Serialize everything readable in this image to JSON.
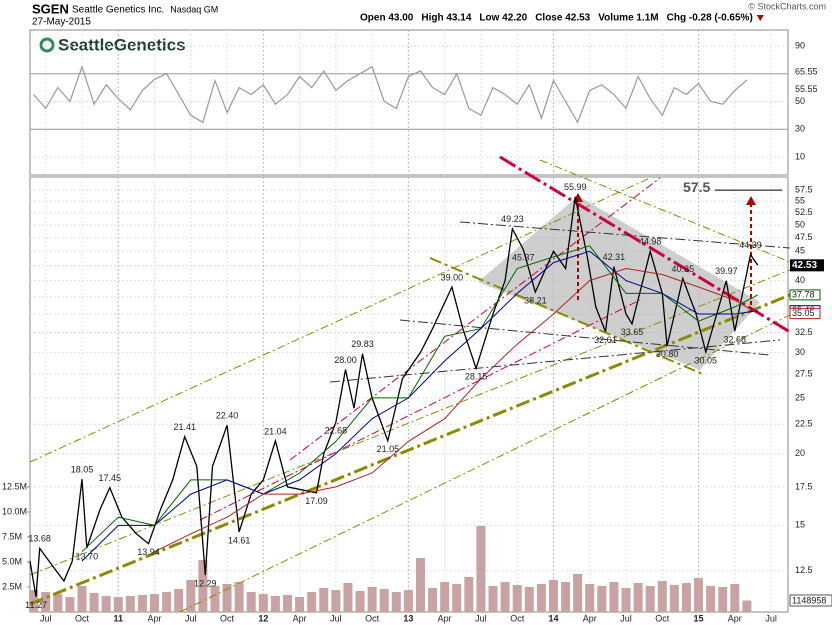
{
  "header": {
    "symbol": "SGEN",
    "name": "Seattle Genetics Inc.",
    "exchange": "Nasdaq GM",
    "date": "27-May-2015",
    "quote": [
      "Open 43.00",
      "High 43.14",
      "Low 42.20",
      "Close 42.53",
      "Volume 1.1M",
      "Chg -0.28 (-0.65%)"
    ],
    "copyright": "© StockCharts.com",
    "logo": "SeattleGenetics"
  },
  "chart_data": [
    {
      "type": "line",
      "xlim": [
        -7.3,
        55.4
      ],
      "ylim": [
        -3,
        101.5
      ],
      "yticks": [
        10,
        30,
        50,
        90
      ],
      "bands": [
        30,
        70
      ],
      "grid": true,
      "tags": [
        65.55,
        55.55
      ],
      "series": [
        {
          "color": "#999999",
          "x": [
            -7,
            -6,
            -5,
            -4,
            -3,
            -2,
            -1,
            0,
            1,
            2,
            3,
            4,
            5,
            6,
            7,
            8,
            9,
            10,
            11,
            12,
            13,
            14,
            15,
            16,
            17,
            18,
            19,
            20,
            21,
            22,
            23,
            24,
            25,
            26,
            27,
            28,
            29,
            30,
            31,
            32,
            33,
            34,
            35,
            36,
            37,
            38,
            39,
            40,
            41,
            42,
            43,
            44,
            45,
            46,
            47,
            48,
            49,
            50,
            51,
            52
          ],
          "values": [
            55,
            45,
            60,
            50,
            75,
            48,
            62,
            52,
            44,
            58,
            66,
            70,
            55,
            40,
            35,
            65,
            42,
            60,
            55,
            62,
            48,
            55,
            68,
            60,
            72,
            58,
            65,
            70,
            75,
            50,
            45,
            68,
            72,
            60,
            55,
            70,
            45,
            40,
            60,
            55,
            48,
            62,
            38,
            65,
            50,
            35,
            58,
            62,
            55,
            45,
            68,
            52,
            40,
            60,
            55,
            63,
            50,
            48,
            58,
            65.55
          ]
        }
      ]
    },
    {
      "type": "line",
      "log_scale": true,
      "grid": true,
      "xlim": [
        -7.3,
        55.4
      ],
      "ylim": [
        10.6,
        60.6
      ],
      "yticks": [
        12.5,
        15,
        17.5,
        20,
        22.5,
        25,
        27.5,
        30,
        32.5,
        35,
        37.5,
        40,
        42.5,
        45,
        47.5,
        50,
        52.5,
        55,
        57.5
      ],
      "y2lim": [
        0,
        43.5
      ],
      "y2ticks": [
        {
          "value": 2.5,
          "label": "2.5M"
        },
        {
          "value": 5,
          "label": "5.0M"
        },
        {
          "value": 7.5,
          "label": "7.5M"
        },
        {
          "value": 10,
          "label": "10.0M"
        },
        {
          "value": 12.5,
          "label": "12.5M"
        }
      ],
      "xticks": [
        {
          "value": -6,
          "label": "Jul"
        },
        {
          "value": -3,
          "label": "Oct"
        },
        {
          "value": 0,
          "label": "11"
        },
        {
          "value": 3,
          "label": "Apr"
        },
        {
          "value": 6,
          "label": "Jul"
        },
        {
          "value": 9,
          "label": "Oct"
        },
        {
          "value": 12,
          "label": "12"
        },
        {
          "value": 15,
          "label": "Apr"
        },
        {
          "value": 18,
          "label": "Jul"
        },
        {
          "value": 21,
          "label": "Oct"
        },
        {
          "value": 24,
          "label": "13"
        },
        {
          "value": 27,
          "label": "Apr"
        },
        {
          "value": 30,
          "label": "Jul"
        },
        {
          "value": 33,
          "label": "Oct"
        },
        {
          "value": 36,
          "label": "14"
        },
        {
          "value": 39,
          "label": "Apr"
        },
        {
          "value": 42,
          "label": "Jul"
        },
        {
          "value": 45,
          "label": "Oct"
        },
        {
          "value": 48,
          "label": "15"
        },
        {
          "value": 51,
          "label": "Apr"
        },
        {
          "value": 54,
          "label": "Jul"
        }
      ],
      "target": 57.5,
      "series": [
        {
          "color": "#000000",
          "x": [
            -7.3,
            -6.8,
            -6.5,
            -5.5,
            -4.5,
            -3.8,
            -3.0,
            -2.6,
            -1.5,
            -0.7,
            0.3,
            1.5,
            2.5,
            3.5,
            4.5,
            5.5,
            6.5,
            7.2,
            7.8,
            9.0,
            10.0,
            11.0,
            12.0,
            13.0,
            14.0,
            16.4,
            17.0,
            18.0,
            18.8,
            19.5,
            20.2,
            21.0,
            22.3,
            23.5,
            25.0,
            26.0,
            27.6,
            28.5,
            29.6,
            31.0,
            32.0,
            32.6,
            33.5,
            34.5,
            36.0,
            37.0,
            37.8,
            38.8,
            39.5,
            40.3,
            41.0,
            42.0,
            42.5,
            44.0,
            45.0,
            45.4,
            46.7,
            47.8,
            48.6,
            50.3,
            51.0,
            52.3,
            52.9
          ],
          "values": [
            13.0,
            11.27,
            13.68,
            12.8,
            12.0,
            13.0,
            18.05,
            13.7,
            16.0,
            17.45,
            15.5,
            14.5,
            13.94,
            16.0,
            18.0,
            21.41,
            19.0,
            12.29,
            19.0,
            22.4,
            14.61,
            17.0,
            18.0,
            21.04,
            17.5,
            17.09,
            20.0,
            22.68,
            28.0,
            24.0,
            29.83,
            25.0,
            21.05,
            27.0,
            30.0,
            33.0,
            39.0,
            33.0,
            28.15,
            35.0,
            40.0,
            49.23,
            45.37,
            38.21,
            45.0,
            42.0,
            55.99,
            44.0,
            36.0,
            32.61,
            42.31,
            35.0,
            33.65,
            44.98,
            38.0,
            30.8,
            40.35,
            35.0,
            30.05,
            39.97,
            32.68,
            44.39,
            42.53
          ],
          "value_labels": [
            null,
            "11.27",
            "13.68",
            null,
            null,
            null,
            "18.05",
            "13.70",
            null,
            "17.45",
            null,
            null,
            "13.94",
            null,
            null,
            "21.41",
            null,
            "12.29",
            null,
            "22.40",
            "14.61",
            null,
            null,
            "21.04",
            null,
            "17.09",
            null,
            "22.68",
            "28.00",
            null,
            "29.83",
            null,
            "21.05",
            null,
            null,
            null,
            "39.00",
            null,
            "28.15",
            null,
            null,
            "49.23",
            "45.37",
            "38.21",
            null,
            null,
            "55.99",
            null,
            null,
            "32.61",
            "42.31",
            null,
            "33.65",
            "44.98",
            null,
            "30.80",
            "40.35",
            null,
            "30.05",
            "39.97",
            "32.68",
            "44.39",
            "42.53"
          ]
        },
        {
          "color": "#006400",
          "x": [
            -3,
            0,
            3,
            6,
            9,
            12,
            15,
            18,
            21,
            24,
            27,
            30,
            33,
            36,
            39,
            42,
            45,
            48,
            51,
            52.9
          ],
          "values": [
            13.5,
            15.5,
            15,
            18,
            18,
            17,
            18.5,
            21,
            25,
            25,
            32,
            33,
            42,
            44,
            46,
            38,
            38,
            34,
            36,
            37.78
          ]
        },
        {
          "color": "#00008b",
          "x": [
            -3,
            0,
            3,
            6,
            9,
            12,
            15,
            18,
            21,
            24,
            27,
            30,
            33,
            36,
            39,
            42,
            45,
            48,
            51,
            52.9
          ],
          "values": [
            13,
            15,
            15,
            17,
            18,
            17,
            18,
            20,
            23,
            25,
            29,
            33,
            38,
            43,
            45,
            40,
            38,
            35,
            35,
            35.46
          ]
        },
        {
          "color": "#b22222",
          "x": [
            3,
            6,
            9,
            12,
            15,
            18,
            21,
            24,
            27,
            30,
            33,
            36,
            39,
            42,
            45,
            48,
            51,
            52.9
          ],
          "values": [
            13.5,
            14.5,
            15.5,
            17,
            17,
            17.5,
            18.5,
            21,
            23,
            27,
            31,
            35,
            40,
            42,
            41,
            39,
            37,
            35.05
          ]
        },
        {
          "type": "bar",
          "axis": "y2",
          "color": "#c9a3a3",
          "x": [
            -7,
            -6,
            -5,
            -4,
            -3,
            -2,
            -1,
            0,
            1,
            2,
            3,
            4,
            5,
            6,
            7,
            8,
            9,
            10,
            11,
            12,
            13,
            14,
            15,
            16,
            17,
            18,
            19,
            20,
            21,
            22,
            23,
            24,
            25,
            26,
            27,
            28,
            29,
            30,
            31,
            32,
            33,
            34,
            35,
            36,
            37,
            38,
            39,
            40,
            41,
            42,
            43,
            44,
            45,
            46,
            47,
            48,
            49,
            50,
            51,
            52
          ],
          "values": [
            2.2,
            2.0,
            1.8,
            1.5,
            2.6,
            1.9,
            1.6,
            1.5,
            1.6,
            1.7,
            1.8,
            2.0,
            2.3,
            3.2,
            5.2,
            2.6,
            2.8,
            3.0,
            2.0,
            1.8,
            1.6,
            1.7,
            1.5,
            2.0,
            2.4,
            2.2,
            2.9,
            2.1,
            2.5,
            2.3,
            2.0,
            2.2,
            5.4,
            2.4,
            3.0,
            2.8,
            3.5,
            8.6,
            2.6,
            3.0,
            2.7,
            2.5,
            2.8,
            3.2,
            3.0,
            3.8,
            2.8,
            2.6,
            3.0,
            2.4,
            2.9,
            2.6,
            3.1,
            2.7,
            2.9,
            3.4,
            2.6,
            2.5,
            2.8,
            1.148958
          ],
          "value_labels": [
            null,
            null,
            null,
            null,
            null,
            null,
            null,
            null,
            null,
            null,
            null,
            null,
            null,
            null,
            null,
            null,
            null,
            null,
            null,
            null,
            null,
            null,
            null,
            null,
            null,
            null,
            null,
            null,
            null,
            null,
            null,
            null,
            null,
            null,
            null,
            null,
            null,
            null,
            null,
            null,
            null,
            null,
            null,
            null,
            null,
            null,
            null,
            null,
            null,
            null,
            null,
            null,
            null,
            null,
            null,
            null,
            null,
            null,
            null,
            "1148958"
          ]
        }
      ]
    }
  ]
}
